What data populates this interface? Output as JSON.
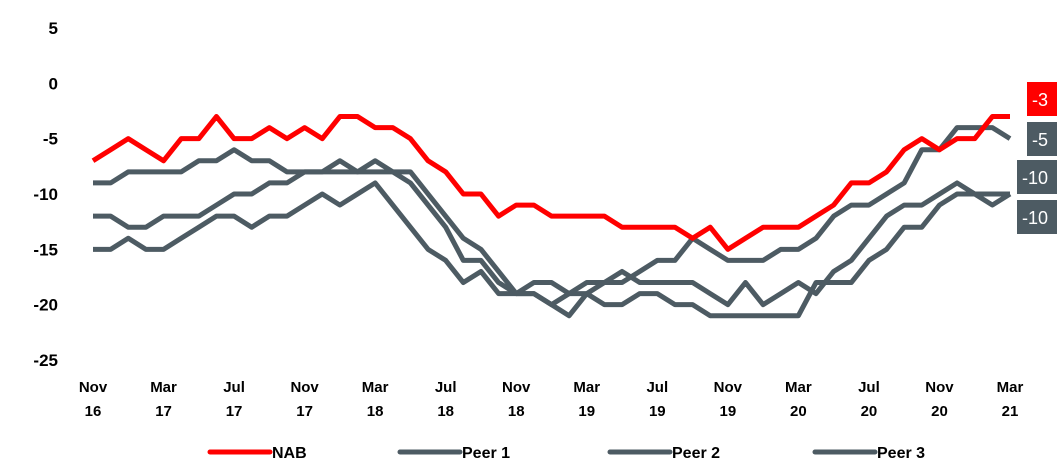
{
  "chart_data": {
    "type": "line",
    "categories": [
      "Nov 16",
      null,
      null,
      null,
      "Mar 17",
      null,
      null,
      null,
      "Jul 17",
      null,
      null,
      null,
      "Nov 17",
      null,
      null,
      null,
      "Mar 18",
      null,
      null,
      null,
      "Jul 18",
      null,
      null,
      null,
      "Nov 18",
      null,
      null,
      null,
      "Mar 19",
      null,
      null,
      null,
      "Jul 19",
      null,
      null,
      null,
      "Nov 19",
      null,
      null,
      null,
      "Mar 20",
      null,
      null,
      null,
      "Jul 20",
      null,
      null,
      null,
      "Nov 20",
      null,
      null,
      null,
      "Mar 21"
    ],
    "series": [
      {
        "name": "NAB",
        "color": "#ff0000",
        "values": [
          -7,
          -6,
          -5,
          -6,
          -7,
          -5,
          -5,
          -3,
          -5,
          -5,
          -4,
          -5,
          -4,
          -5,
          -3,
          -3,
          -4,
          -4,
          -5,
          -7,
          -8,
          -10,
          -10,
          -12,
          -11,
          -11,
          -12,
          -12,
          -12,
          -12,
          -13,
          -13,
          -13,
          -13,
          -14,
          -13,
          -15,
          -14,
          -13,
          -13,
          -13,
          -12,
          -11,
          -9,
          -9,
          -8,
          -6,
          -5,
          -6,
          -5,
          -5,
          -3,
          -3
        ]
      },
      {
        "name": "Peer 1",
        "color": "#4d5b63",
        "values": [
          -9,
          -9,
          -8,
          -8,
          -8,
          -8,
          -7,
          -7,
          -6,
          -7,
          -7,
          -8,
          -8,
          -8,
          -8,
          -8,
          -8,
          -8,
          -8,
          -10,
          -12,
          -14,
          -15,
          -17,
          -19,
          -19,
          -20,
          -21,
          -19,
          -18,
          -18,
          -17,
          -16,
          -16,
          -14,
          -15,
          -16,
          -16,
          -16,
          -15,
          -15,
          -14,
          -12,
          -11,
          -11,
          -10,
          -9,
          -6,
          -6,
          -4,
          -4,
          -4,
          -5
        ]
      },
      {
        "name": "Peer 2",
        "color": "#4d5b63",
        "values": [
          -12,
          -12,
          -13,
          -13,
          -12,
          -12,
          -12,
          -11,
          -10,
          -10,
          -9,
          -9,
          -8,
          -8,
          -7,
          -8,
          -7,
          -8,
          -9,
          -11,
          -13,
          -16,
          -16,
          -18,
          -19,
          -19,
          -20,
          -19,
          -18,
          -18,
          -17,
          -18,
          -18,
          -18,
          -18,
          -19,
          -20,
          -18,
          -20,
          -19,
          -18,
          -19,
          -17,
          -16,
          -14,
          -12,
          -11,
          -11,
          -10,
          -9,
          -10,
          -11,
          -10
        ]
      },
      {
        "name": "Peer 3",
        "color": "#4d5b63",
        "values": [
          -15,
          -15,
          -14,
          -15,
          -15,
          -14,
          -13,
          -12,
          -12,
          -13,
          -12,
          -12,
          -11,
          -10,
          -11,
          -10,
          -9,
          -11,
          -13,
          -15,
          -16,
          -18,
          -17,
          -19,
          -19,
          -18,
          -18,
          -19,
          -19,
          -20,
          -20,
          -19,
          -19,
          -20,
          -20,
          -21,
          -21,
          -21,
          -21,
          -21,
          -21,
          -18,
          -18,
          -18,
          -16,
          -15,
          -13,
          -13,
          -11,
          -10,
          -10,
          -10,
          -10
        ]
      }
    ],
    "ylim": [
      -25,
      5
    ],
    "yticks": [
      5,
      0,
      -5,
      -10,
      -15,
      -20,
      -25
    ],
    "grid": false,
    "legend": "bottom"
  }
}
